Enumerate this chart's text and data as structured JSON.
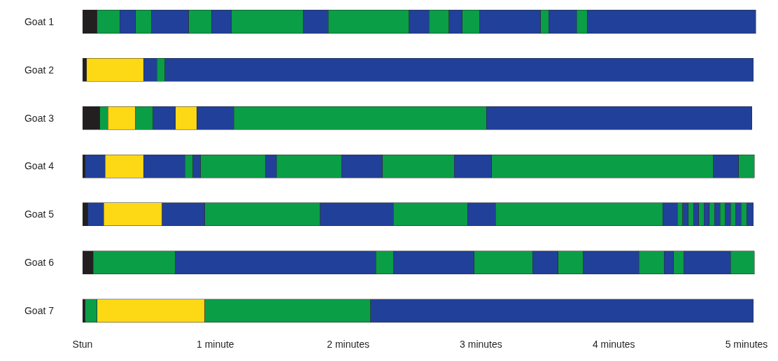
{
  "chart_data": {
    "type": "bar",
    "orientation": "horizontal",
    "stacked": true,
    "categories": [
      "Goat 1",
      "Goat 2",
      "Goat 3",
      "Goat 4",
      "Goat 5",
      "Goat 6",
      "Goat 7"
    ],
    "xlim": [
      0,
      5.1
    ],
    "xticks": [
      {
        "value": 0,
        "label": "Stun"
      },
      {
        "value": 1,
        "label": "1 minute"
      },
      {
        "value": 2,
        "label": "2 minutes"
      },
      {
        "value": 3,
        "label": "3 minutes"
      },
      {
        "value": 4,
        "label": "4 minutes"
      },
      {
        "value": 5,
        "label": "5 minutes"
      }
    ],
    "series": [
      {
        "values": [
          0.11,
          0.03,
          0.13,
          0.02,
          0.04,
          0.08,
          0.02
        ],
        "colors": [
          "#231f20",
          "#231f20",
          "#231f20",
          "#231f20",
          "#231f20",
          "#231f20",
          "#231f20"
        ]
      },
      {
        "values": [
          0.17,
          0.43,
          0.06,
          0.15,
          0.12,
          0.62,
          0.09
        ],
        "colors": [
          "#0a9e47",
          "#fdd815",
          "#0a9e47",
          "#21409a",
          "#21409a",
          "#0a9e47",
          "#0a9e47"
        ]
      },
      {
        "values": [
          0.12,
          0.1,
          0.21,
          0.29,
          0.44,
          1.51,
          0.81
        ],
        "colors": [
          "#21409a",
          "#21409a",
          "#fdd815",
          "#fdd815",
          "#fdd815",
          "#21409a",
          "#fdd815"
        ]
      },
      {
        "values": [
          0.12,
          0.06,
          0.13,
          0.31,
          0.32,
          0.13,
          1.25
        ],
        "colors": [
          "#0a9e47",
          "#0a9e47",
          "#0a9e47",
          "#21409a",
          "#21409a",
          "#0a9e47",
          "#0a9e47"
        ]
      },
      {
        "values": [
          0.28,
          4.43,
          0.17,
          0.06,
          0.87,
          0.61,
          2.88
        ],
        "colors": [
          "#21409a",
          "#21409a",
          "#21409a",
          "#0a9e47",
          "#0a9e47",
          "#21409a",
          "#21409a"
        ]
      },
      {
        "values": [
          0.17,
          null,
          0.16,
          0.06,
          0.55,
          0.44,
          null
        ],
        "colors": [
          "#0a9e47",
          null,
          "#fdd815",
          "#21409a",
          "#21409a",
          "#0a9e47",
          null
        ]
      },
      {
        "values": [
          0.15,
          null,
          0.28,
          0.49,
          0.56,
          0.19,
          null
        ],
        "colors": [
          "#21409a",
          null,
          "#21409a",
          "#0a9e47",
          "#0a9e47",
          "#21409a",
          null
        ]
      },
      {
        "values": [
          0.54,
          null,
          1.9,
          0.08,
          0.21,
          0.19,
          null
        ],
        "colors": [
          "#0a9e47",
          null,
          "#0a9e47",
          "#21409a",
          "#21409a",
          "#0a9e47",
          null
        ]
      },
      {
        "values": [
          0.19,
          null,
          2.0,
          0.49,
          1.26,
          0.42,
          null
        ],
        "colors": [
          "#21409a",
          null,
          "#21409a",
          "#0a9e47",
          "#0a9e47",
          "#21409a",
          null
        ]
      },
      {
        "values": [
          0.61,
          null,
          null,
          0.31,
          0.11,
          0.19,
          null
        ],
        "colors": [
          "#0a9e47",
          null,
          null,
          "#21409a",
          "#21409a",
          "#0a9e47",
          null
        ]
      },
      {
        "values": [
          0.15,
          null,
          null,
          0.54,
          0.04,
          0.07,
          null
        ],
        "colors": [
          "#21409a",
          null,
          null,
          "#0a9e47",
          "#0a9e47",
          "#21409a",
          null
        ]
      },
      {
        "values": [
          0.15,
          null,
          null,
          0.28,
          0.04,
          0.08,
          null
        ],
        "colors": [
          "#0a9e47",
          null,
          null,
          "#21409a",
          "#21409a",
          "#0a9e47",
          null
        ]
      },
      {
        "values": [
          0.1,
          null,
          null,
          1.67,
          0.04,
          0.35,
          null
        ],
        "colors": [
          "#21409a",
          null,
          null,
          "#0a9e47",
          "#0a9e47",
          "#21409a",
          null
        ]
      },
      {
        "values": [
          0.13,
          null,
          null,
          0.19,
          0.04,
          0.18,
          null
        ],
        "colors": [
          "#0a9e47",
          null,
          null,
          "#21409a",
          "#21409a",
          "#0a9e47",
          null
        ]
      },
      {
        "values": [
          0.46,
          null,
          null,
          0.12,
          0.04,
          null,
          null
        ],
        "colors": [
          "#21409a",
          null,
          null,
          "#0a9e47",
          "#0a9e47",
          null,
          null
        ]
      },
      {
        "values": [
          0.06,
          null,
          null,
          null,
          0.04,
          null,
          null
        ],
        "colors": [
          "#0a9e47",
          null,
          null,
          null,
          "#21409a",
          null,
          null
        ]
      },
      {
        "values": [
          0.21,
          null,
          null,
          null,
          0.04,
          null,
          null
        ],
        "colors": [
          "#21409a",
          null,
          null,
          null,
          "#0a9e47",
          null,
          null
        ]
      },
      {
        "values": [
          0.08,
          null,
          null,
          null,
          0.04,
          null,
          null
        ],
        "colors": [
          "#0a9e47",
          null,
          null,
          null,
          "#21409a",
          null,
          null
        ]
      },
      {
        "values": [
          1.27,
          null,
          null,
          null,
          0.04,
          null,
          null
        ],
        "colors": [
          "#21409a",
          null,
          null,
          null,
          "#0a9e47",
          null,
          null
        ]
      },
      {
        "values": [
          null,
          null,
          null,
          null,
          0.04,
          null,
          null
        ],
        "colors": [
          null,
          null,
          null,
          null,
          "#21409a",
          null,
          null
        ]
      },
      {
        "values": [
          null,
          null,
          null,
          null,
          0.04,
          null,
          null
        ],
        "colors": [
          null,
          null,
          null,
          null,
          "#0a9e47",
          null,
          null
        ]
      },
      {
        "values": [
          null,
          null,
          null,
          null,
          0.04,
          null,
          null
        ],
        "colors": [
          null,
          null,
          null,
          null,
          "#21409a",
          null,
          null
        ]
      },
      {
        "values": [
          null,
          null,
          null,
          null,
          0.04,
          null,
          null
        ],
        "colors": [
          null,
          null,
          null,
          null,
          "#0a9e47",
          null,
          null
        ]
      },
      {
        "values": [
          null,
          null,
          null,
          null,
          0.05,
          null,
          null
        ],
        "colors": [
          null,
          null,
          null,
          null,
          "#21409a",
          null,
          null
        ]
      }
    ]
  }
}
